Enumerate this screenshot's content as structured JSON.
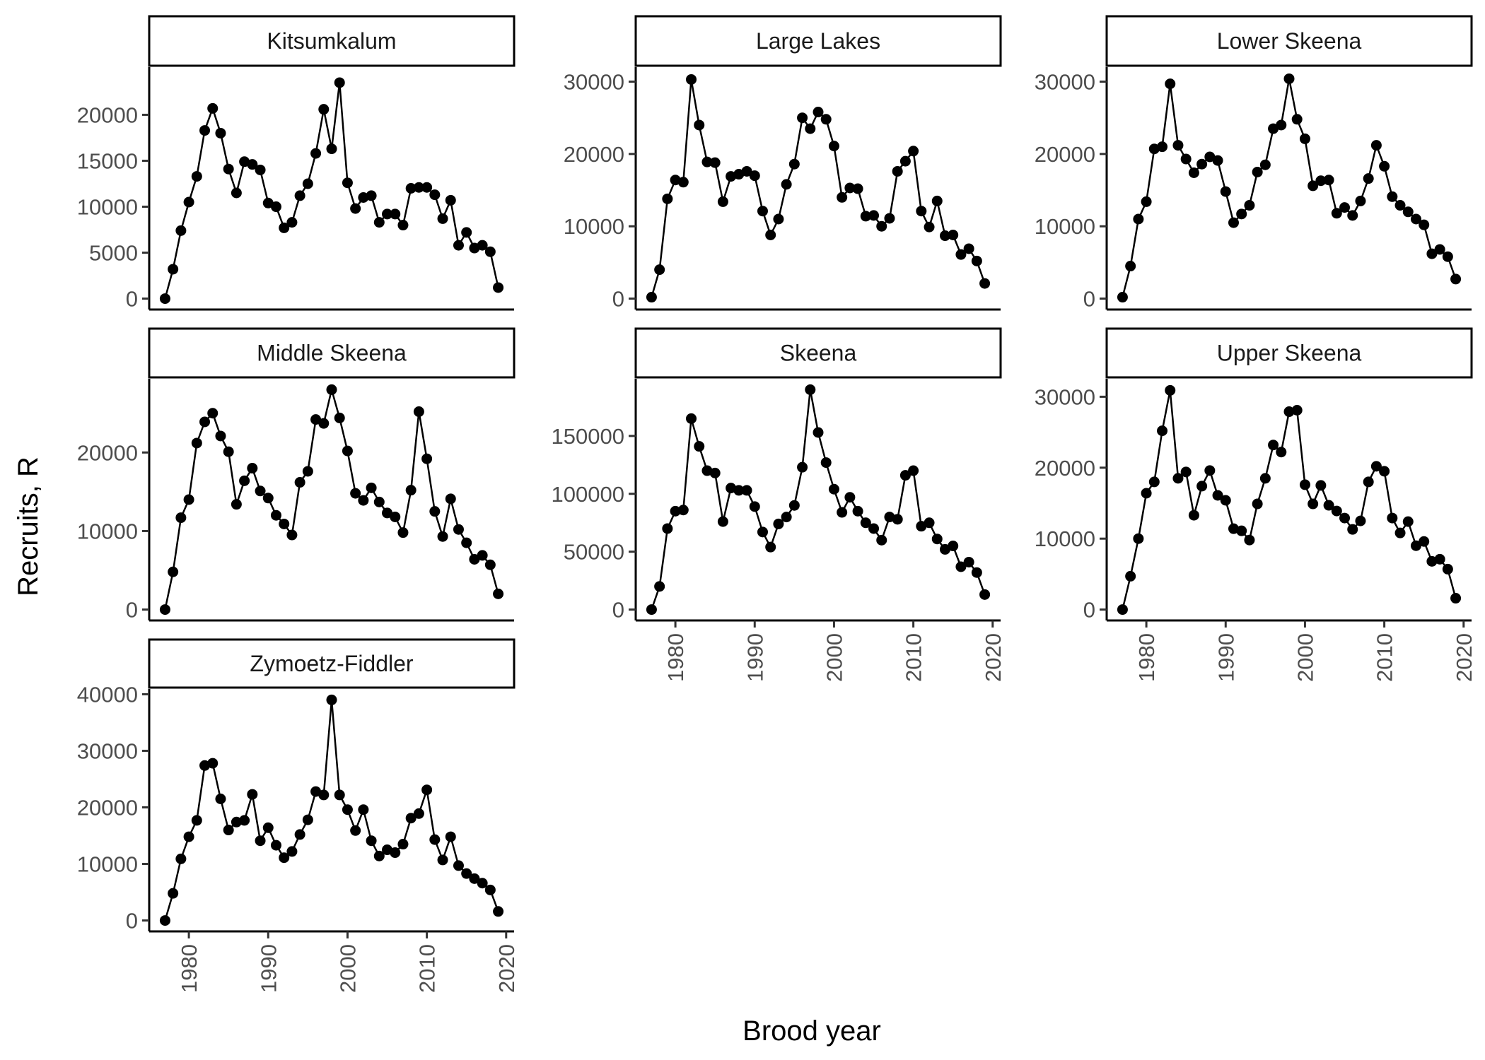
{
  "chart_data": {
    "type": "line",
    "title": "",
    "xlabel": "Brood year",
    "ylabel": "Recruits, R",
    "x": [
      1977,
      1978,
      1979,
      1980,
      1981,
      1982,
      1983,
      1984,
      1985,
      1986,
      1987,
      1988,
      1989,
      1990,
      1991,
      1992,
      1993,
      1994,
      1995,
      1996,
      1997,
      1998,
      1999,
      2000,
      2001,
      2002,
      2003,
      2004,
      2005,
      2006,
      2007,
      2008,
      2009,
      2010,
      2011,
      2012,
      2013,
      2014,
      2015,
      2016,
      2017,
      2018,
      2019
    ],
    "xticks": [
      1980,
      1990,
      2000,
      2010,
      2020
    ],
    "grid": false,
    "legend": "none",
    "colors": {
      "series": "#000000",
      "axis": "#000000",
      "tick_label": "#4d4d4d",
      "strip_fill": "#ffffff"
    },
    "panels": [
      {
        "name": "Kitsumkalum",
        "ylim": [
          0,
          24000
        ],
        "yticks": [
          0,
          5000,
          10000,
          15000,
          20000
        ],
        "values": [
          0,
          3200,
          7400,
          10500,
          13300,
          18300,
          20700,
          18000,
          14100,
          11500,
          14900,
          14600,
          14000,
          10400,
          10000,
          7700,
          8300,
          11200,
          12500,
          15800,
          20600,
          16300,
          23500,
          12600,
          9800,
          11000,
          11200,
          8300,
          9200,
          9200,
          8000,
          12000,
          12100,
          12100,
          11300,
          8700,
          10700,
          5800,
          7200,
          5500,
          5800,
          5100,
          1200
        ]
      },
      {
        "name": "Large Lakes",
        "ylim": [
          0,
          30500
        ],
        "yticks": [
          0,
          10000,
          20000,
          30000
        ],
        "values": [
          200,
          4000,
          13800,
          16400,
          16100,
          30300,
          24000,
          18900,
          18800,
          13400,
          16900,
          17200,
          17600,
          17000,
          12100,
          8800,
          11000,
          15800,
          18600,
          25000,
          23500,
          25800,
          24800,
          21100,
          14000,
          15300,
          15200,
          11400,
          11500,
          10000,
          11100,
          17600,
          19000,
          20400,
          12100,
          9900,
          13500,
          8700,
          8800,
          6100,
          6900,
          5200,
          2100
        ]
      },
      {
        "name": "Lower Skeena",
        "ylim": [
          0,
          30500
        ],
        "yticks": [
          0,
          10000,
          20000,
          30000
        ],
        "values": [
          200,
          4500,
          11000,
          13400,
          20700,
          21000,
          29700,
          21200,
          19300,
          17400,
          18600,
          19600,
          19100,
          14800,
          10500,
          11700,
          12900,
          17500,
          18500,
          23500,
          24000,
          30400,
          24800,
          22100,
          15600,
          16300,
          16400,
          11800,
          12600,
          11500,
          13500,
          16600,
          21200,
          18300,
          14100,
          12900,
          12000,
          11000,
          10200,
          6200,
          6800,
          5800,
          2700
        ]
      },
      {
        "name": "Middle Skeena",
        "ylim": [
          0,
          28000
        ],
        "yticks": [
          0,
          10000,
          20000
        ],
        "values": [
          0,
          4800,
          11700,
          14000,
          21200,
          23900,
          25000,
          22100,
          20100,
          13400,
          16400,
          18000,
          15100,
          14200,
          12000,
          10900,
          9500,
          16200,
          17600,
          24200,
          23700,
          28000,
          24400,
          20200,
          14800,
          13900,
          15500,
          13700,
          12300,
          11800,
          9800,
          15200,
          25200,
          19200,
          12500,
          9300,
          14100,
          10200,
          8500,
          6400,
          6900,
          5700,
          2000
        ]
      },
      {
        "name": "Skeena",
        "ylim": [
          0,
          190000
        ],
        "yticks": [
          0,
          50000,
          100000,
          150000
        ],
        "values": [
          0,
          20000,
          70000,
          85000,
          86000,
          165000,
          141000,
          120000,
          118000,
          76000,
          105000,
          103000,
          103000,
          89000,
          67000,
          54000,
          74000,
          80000,
          90000,
          123000,
          190000,
          153000,
          127000,
          104000,
          84000,
          97000,
          85000,
          75000,
          70000,
          60000,
          80000,
          78000,
          116000,
          120000,
          72000,
          75000,
          61000,
          52000,
          55000,
          37000,
          41000,
          32000,
          13000
        ]
      },
      {
        "name": "Upper Skeena",
        "ylim": [
          0,
          31000
        ],
        "yticks": [
          0,
          10000,
          20000,
          30000
        ],
        "values": [
          0,
          4700,
          10000,
          16400,
          18000,
          25200,
          30900,
          18500,
          19400,
          13300,
          17400,
          19600,
          16100,
          15400,
          11400,
          11100,
          9800,
          14900,
          18500,
          23200,
          22200,
          27900,
          28100,
          17600,
          14900,
          17500,
          14700,
          13900,
          12900,
          11300,
          12500,
          18000,
          20200,
          19500,
          12900,
          10800,
          12400,
          9000,
          9600,
          6800,
          7100,
          5700,
          1600
        ]
      },
      {
        "name": "Zymoetz-Fiddler",
        "ylim": [
          0,
          39000
        ],
        "yticks": [
          0,
          10000,
          20000,
          30000,
          40000
        ],
        "values": [
          0,
          4800,
          10900,
          14800,
          17700,
          27400,
          27800,
          21500,
          16000,
          17400,
          17700,
          22300,
          14100,
          16400,
          13300,
          11100,
          12200,
          15200,
          17800,
          22800,
          22200,
          39000,
          22200,
          19600,
          15900,
          19600,
          14100,
          11400,
          12500,
          12000,
          13500,
          18100,
          18900,
          23100,
          14300,
          10700,
          14800,
          9700,
          8300,
          7400,
          6600,
          5400,
          1600
        ]
      }
    ]
  }
}
